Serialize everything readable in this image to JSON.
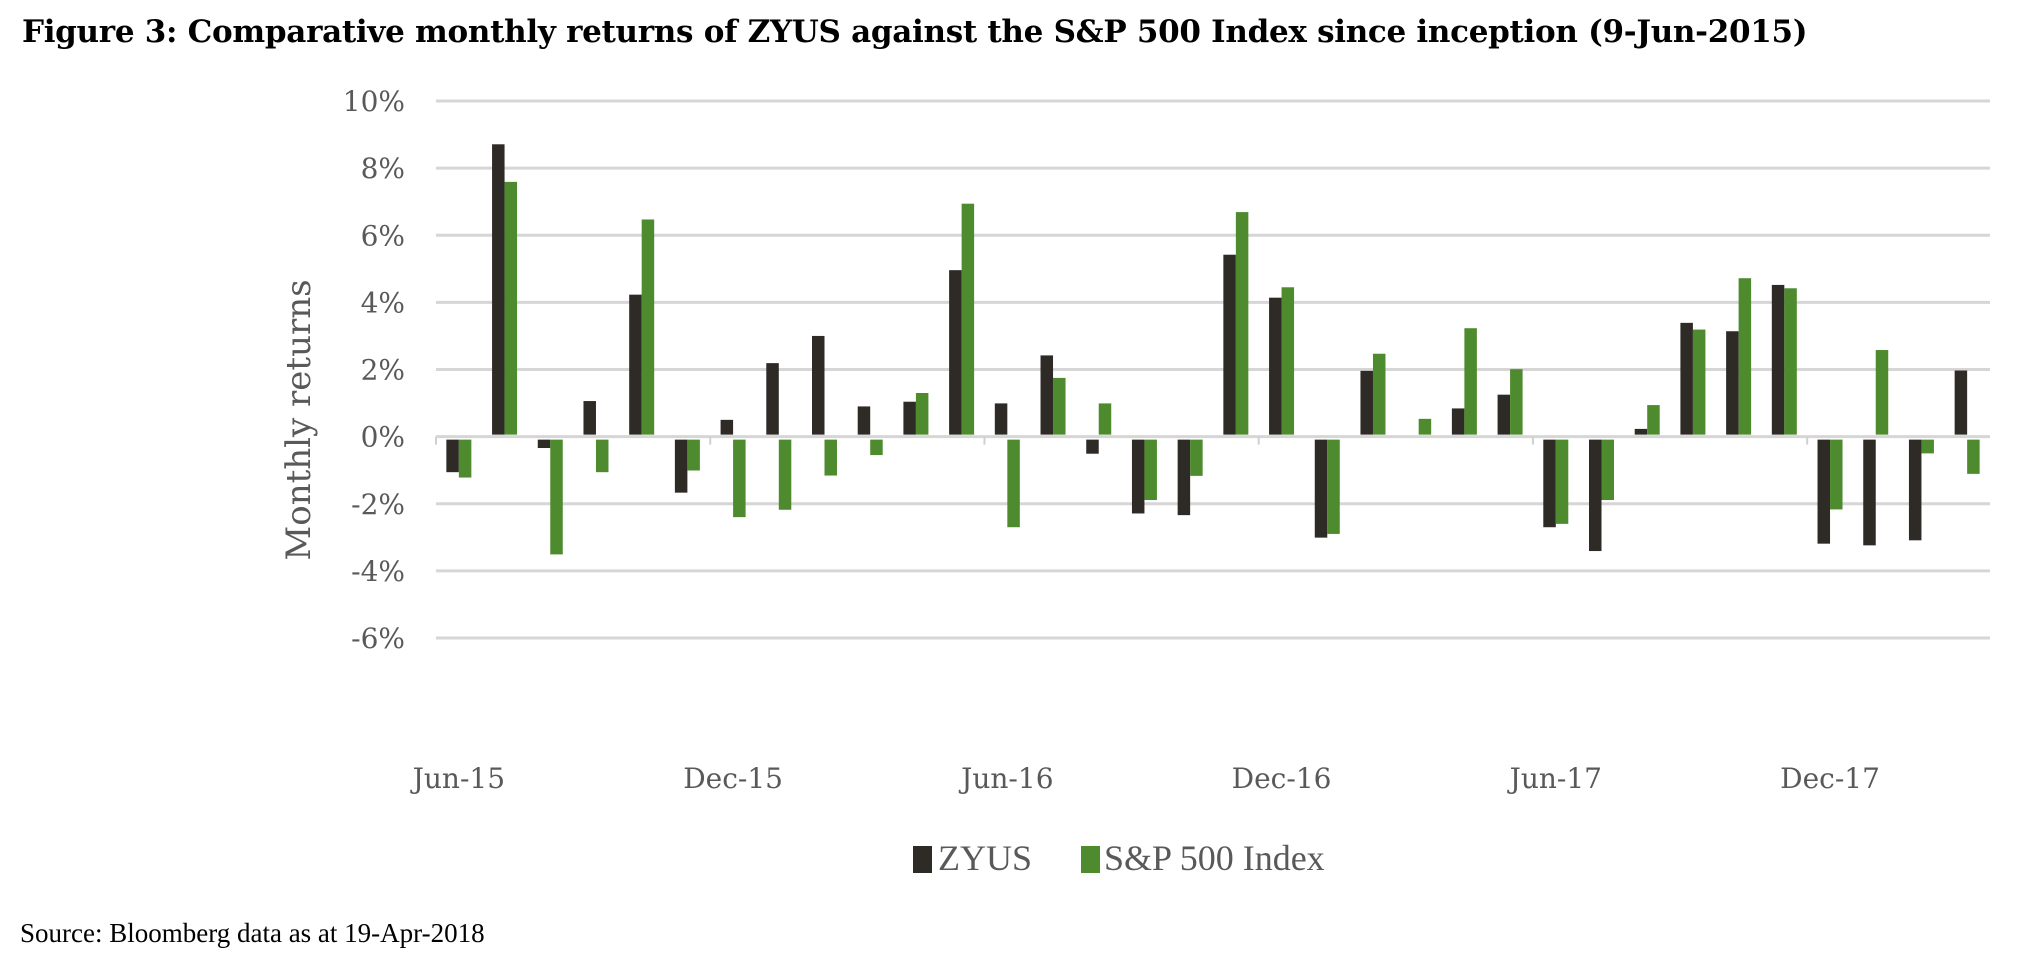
{
  "figure": {
    "title": "Figure 3: Comparative monthly returns of ZYUS against the S&P 500 Index since inception (9-Jun-2015)",
    "source": "Source: Bloomberg data as at 19-Apr-2018"
  },
  "chart_data": {
    "type": "bar",
    "title": "Comparative monthly returns of ZYUS against the S&P 500 Index since inception (9-Jun-2015)",
    "xlabel": "",
    "ylabel": "Monthly returns",
    "ylim": [
      -6,
      10
    ],
    "yticks": [
      -6,
      -4,
      -2,
      0,
      2,
      4,
      6,
      8,
      10
    ],
    "ytick_labels": [
      "-6%",
      "-4%",
      "-2%",
      "0%",
      "2%",
      "4%",
      "6%",
      "8%",
      "10%"
    ],
    "grid": true,
    "legend_position": "bottom",
    "xtick_labels": [
      "Jun-15",
      "Dec-15",
      "Jun-16",
      "Dec-16",
      "Jun-17",
      "Dec-17"
    ],
    "xtick_label_indices": [
      0,
      6,
      12,
      18,
      24,
      30
    ],
    "categories": [
      "Jun-15",
      "Jul-15",
      "Aug-15",
      "Sep-15",
      "Oct-15",
      "Nov-15",
      "Dec-15",
      "Jan-16",
      "Feb-16",
      "Mar-16",
      "Apr-16",
      "May-16",
      "Jun-16",
      "Jul-16",
      "Aug-16",
      "Sep-16",
      "Oct-16",
      "Nov-16",
      "Dec-16",
      "Jan-17",
      "Feb-17",
      "Mar-17",
      "Apr-17",
      "May-17",
      "Jun-17",
      "Jul-17",
      "Aug-17",
      "Sep-17",
      "Oct-17",
      "Nov-17",
      "Dec-17",
      "Jan-18",
      "Feb-18",
      "Mar-18"
    ],
    "series": [
      {
        "name": "ZYUS",
        "color": "#2e2a26",
        "values": [
          -0.97,
          8.71,
          -0.25,
          1.06,
          4.23,
          -1.58,
          0.5,
          2.19,
          3.0,
          0.9,
          1.04,
          4.96,
          0.99,
          2.42,
          -0.42,
          -2.2,
          -2.25,
          5.42,
          4.14,
          -2.92,
          1.96,
          0.0,
          0.84,
          1.25,
          -2.61,
          -3.32,
          0.23,
          3.39,
          3.14,
          4.52,
          -3.1,
          -3.15,
          -3.0,
          1.97
        ]
      },
      {
        "name": "S&P 500 Index",
        "color": "#4e8b2e",
        "values": [
          -1.13,
          7.59,
          -3.42,
          -0.97,
          6.47,
          -0.92,
          -2.31,
          -2.09,
          -1.07,
          -0.46,
          1.3,
          6.94,
          -2.61,
          1.75,
          0.99,
          -1.8,
          -1.08,
          6.69,
          4.45,
          -2.81,
          2.47,
          0.53,
          3.23,
          2.01,
          -2.51,
          -1.8,
          0.94,
          3.19,
          4.72,
          4.42,
          -2.08,
          2.58,
          -0.41,
          -1.02
        ]
      }
    ],
    "unit": "%"
  }
}
